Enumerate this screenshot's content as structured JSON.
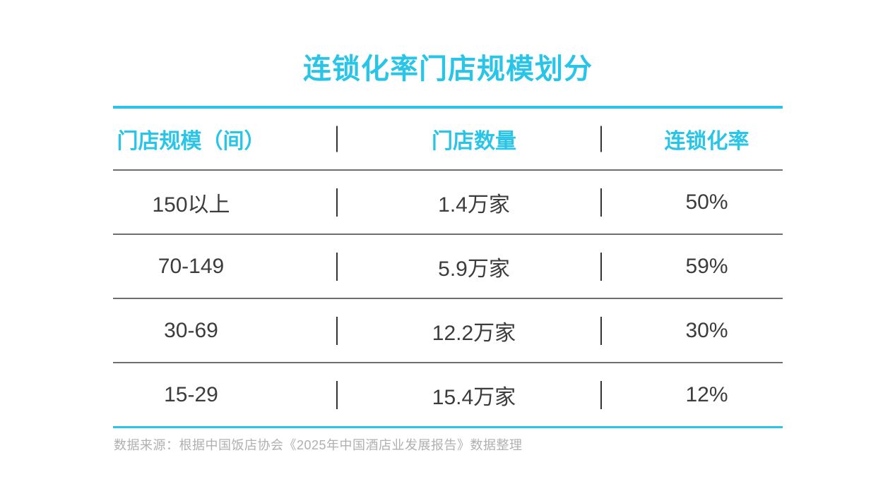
{
  "title": "连锁化率门店规模划分",
  "colors": {
    "accent": "#29C5E8",
    "body_text": "#3C3C3C",
    "separator_gray": "#6F6F6F",
    "divider_dark": "#333333",
    "footer_gray": "#B0B0B0",
    "background": "#FFFFFF"
  },
  "table": {
    "columns": [
      "门店规模（间）",
      "门店数量",
      "连锁化率"
    ],
    "rows": [
      {
        "scale": "150以上",
        "count": "1.4万家",
        "rate": "50%"
      },
      {
        "scale": "70-149",
        "count": "5.9万家",
        "rate": "59%"
      },
      {
        "scale": "30-69",
        "count": "12.2万家",
        "rate": "30%"
      },
      {
        "scale": "15-29",
        "count": "15.4万家",
        "rate": "12%"
      }
    ]
  },
  "footer": {
    "source": "数据来源：根据中国饭店协会《2025年中国酒店业发展报告》数据整理"
  },
  "chart_data": {
    "type": "table",
    "title": "连锁化率门店规模划分",
    "columns": [
      "门店规模（间）",
      "门店数量",
      "连锁化率"
    ],
    "rows": [
      [
        "150以上",
        "1.4万家",
        "50%"
      ],
      [
        "70-149",
        "5.9万家",
        "59%"
      ],
      [
        "30-69",
        "12.2万家",
        "30%"
      ],
      [
        "15-29",
        "15.4万家",
        "12%"
      ]
    ],
    "numeric": {
      "store_scale_bins": [
        "150以上",
        "70-149",
        "30-69",
        "15-29"
      ],
      "store_count_10k": [
        1.4,
        5.9,
        12.2,
        15.4
      ],
      "chain_rate_pct": [
        50,
        59,
        30,
        12
      ]
    },
    "source_note": "数据来源：根据中国饭店协会《2025年中国酒店业发展报告》数据整理"
  }
}
